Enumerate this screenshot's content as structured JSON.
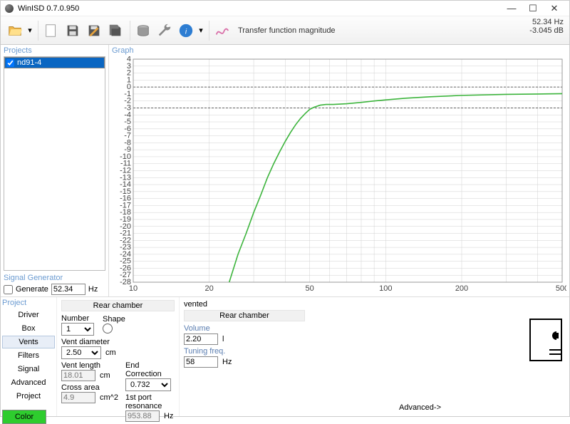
{
  "window": {
    "title": "WinISD 0.7.0.950"
  },
  "toolbar": {
    "graph_label": "Transfer function magnitude",
    "readout_freq": "52.34 Hz",
    "readout_db": "-3.045 dB"
  },
  "panes": {
    "projects": "Projects",
    "graph": "Graph",
    "siggen": "Signal Generator",
    "project": "Project"
  },
  "projects": {
    "items": [
      "nd91-4"
    ],
    "selected": 0,
    "checked": [
      true
    ]
  },
  "siggen": {
    "generate_label": "Generate",
    "generate_checked": false,
    "freq": "52.34",
    "unit": "Hz"
  },
  "tabs": {
    "items": [
      "Driver",
      "Box",
      "Vents",
      "Filters",
      "Signal",
      "Advanced",
      "Project"
    ],
    "selected": 2,
    "color_label": "Color"
  },
  "vents": {
    "group": "Rear chamber",
    "number_label": "Number",
    "number": "1",
    "shape_label": "Shape",
    "diam_label": "Vent diameter",
    "diam": "2.50",
    "diam_unit": "cm",
    "len_label": "Vent length",
    "len": "18.01",
    "len_unit": "cm",
    "endcorr_label": "End Correction",
    "endcorr": "0.732",
    "area_label": "Cross area",
    "area": "4.9",
    "area_unit": "cm^2",
    "res_label": "1st port resonance",
    "res": "953.88",
    "res_unit": "Hz"
  },
  "box": {
    "type": "vented",
    "group": "Rear chamber",
    "vol_label": "Volume",
    "vol": "2.20",
    "vol_unit": "l",
    "tune_label": "Tuning freq.",
    "tune": "58",
    "tune_unit": "Hz",
    "advanced": "Advanced->"
  },
  "colors": {
    "curve": "#3cb43c",
    "grid": "#d0d0d0",
    "axis_text": "#444",
    "dash": "#333",
    "accent": "#6b9bd1",
    "color_btn": "#2ecc2e"
  },
  "chart": {
    "x_min": 10,
    "x_max": 500,
    "x_ticks": [
      10,
      20,
      50,
      100,
      200,
      500
    ],
    "y_min": -28,
    "y_max": 4,
    "y_step": 1,
    "dash_y": [
      0,
      -3
    ],
    "series": [
      [
        24,
        -28
      ],
      [
        26,
        -24
      ],
      [
        28,
        -21
      ],
      [
        30,
        -18
      ],
      [
        32,
        -15.5
      ],
      [
        34,
        -13
      ],
      [
        36,
        -11
      ],
      [
        38,
        -9.3
      ],
      [
        40,
        -7.8
      ],
      [
        42,
        -6.5
      ],
      [
        44,
        -5.4
      ],
      [
        46,
        -4.5
      ],
      [
        48,
        -3.8
      ],
      [
        50,
        -3.2
      ],
      [
        52,
        -2.9
      ],
      [
        55,
        -2.6
      ],
      [
        58,
        -2.5
      ],
      [
        62,
        -2.5
      ],
      [
        70,
        -2.4
      ],
      [
        80,
        -2.2
      ],
      [
        90,
        -2.0
      ],
      [
        100,
        -1.85
      ],
      [
        120,
        -1.6
      ],
      [
        150,
        -1.4
      ],
      [
        200,
        -1.2
      ],
      [
        300,
        -1.05
      ],
      [
        400,
        -1.0
      ],
      [
        500,
        -0.95
      ]
    ]
  }
}
